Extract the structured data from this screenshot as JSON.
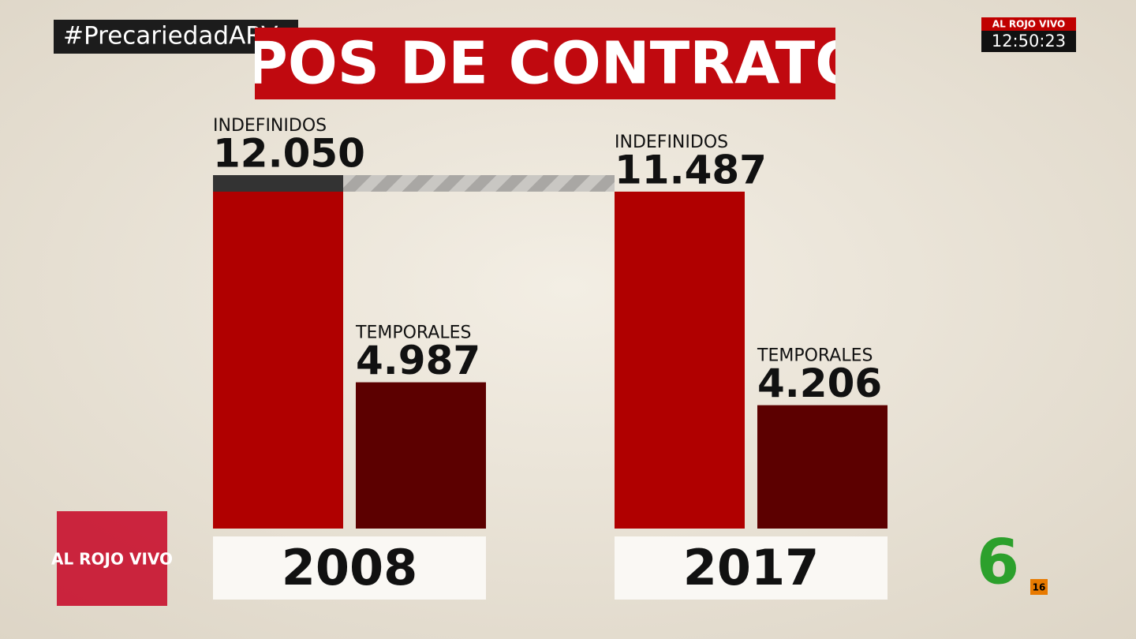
{
  "overlay": {
    "hashtag": "#PrecariedadARV",
    "channel_tag": "AL ROJO VIVO",
    "clock": "12:50:23",
    "logo": "AL ROJO VIVO",
    "network": "6",
    "rating": "16"
  },
  "chart_data": {
    "type": "bar",
    "title": "TIPOS DE CONTRATOS",
    "categories": [
      "2008",
      "2017"
    ],
    "series": [
      {
        "name": "INDEFINIDOS",
        "color": "#b00000",
        "values": [
          12050,
          11487
        ],
        "value_labels": [
          "12.050",
          "11.487"
        ]
      },
      {
        "name": "TEMPORALES",
        "color": "#5c0000",
        "values": [
          4987,
          4206
        ],
        "value_labels": [
          "4.987",
          "4.206"
        ]
      }
    ]
  }
}
